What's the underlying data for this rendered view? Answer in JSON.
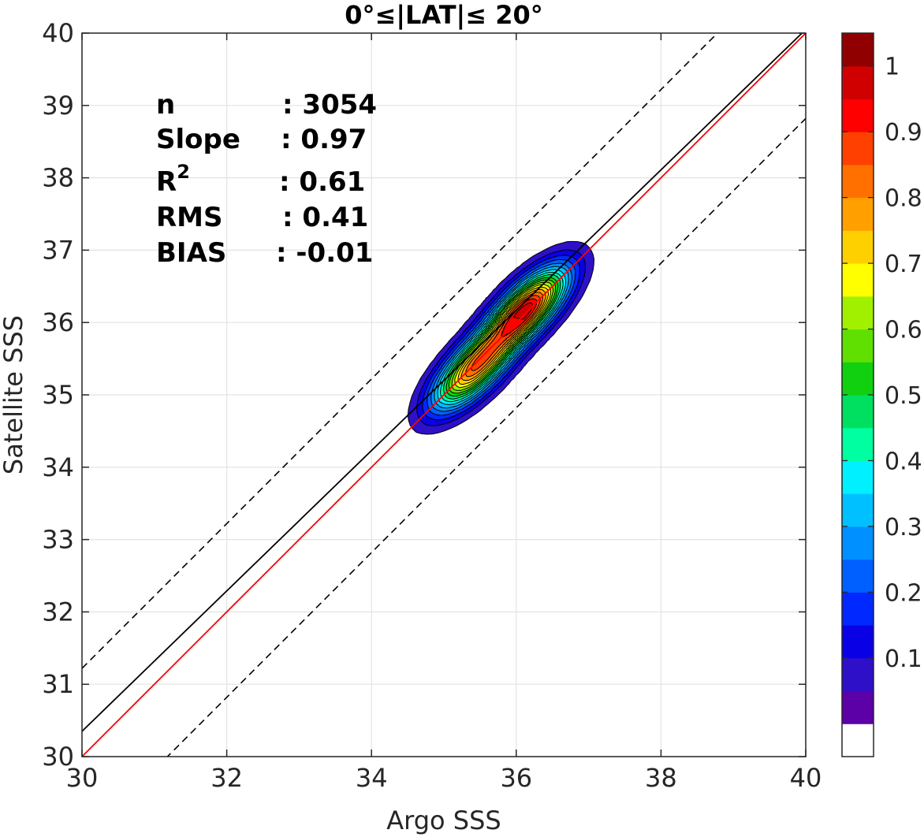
{
  "chart_data": {
    "type": "contour",
    "title": "0°≤|LAT|≤ 20°",
    "xlabel": "Argo SSS",
    "ylabel": "Satellite SSS",
    "xlim": [
      30,
      40
    ],
    "ylim": [
      30,
      40
    ],
    "xticks": [
      "30",
      "32",
      "34",
      "36",
      "38",
      "40"
    ],
    "yticks": [
      "30",
      "31",
      "32",
      "33",
      "34",
      "35",
      "36",
      "37",
      "38",
      "39",
      "40"
    ],
    "grid": true,
    "stats": [
      {
        "label": "n",
        "value": ": 3054"
      },
      {
        "label": "Slope",
        "value": ": 0.97"
      },
      {
        "label": "R",
        "sup": "2",
        "value": ": 0.61"
      },
      {
        "label": "RMS",
        "value": ": 0.41"
      },
      {
        "label": "BIAS",
        "value": ": -0.01"
      }
    ],
    "lines": {
      "one_to_one": {
        "slope": 1.0,
        "intercept": 0.0,
        "color": "#ff0000"
      },
      "fit": {
        "slope": 0.97,
        "intercept": 1.25,
        "color": "#000000"
      },
      "bounds": [
        {
          "slope": 1.0,
          "intercept": 1.22,
          "style": "dashed"
        },
        {
          "slope": 1.0,
          "intercept": -1.18,
          "style": "dashed"
        }
      ]
    },
    "density": {
      "peaks": [
        {
          "x": 36.15,
          "y": 36.2,
          "value": 1.0
        },
        {
          "x": 35.4,
          "y": 35.35,
          "value": 0.85
        }
      ]
    },
    "colorbar": {
      "levels": 20,
      "ticks": [
        "0.1",
        "0.2",
        "0.3",
        "0.4",
        "0.5",
        "0.6",
        "0.7",
        "0.8",
        "0.9",
        "1"
      ],
      "tick_values": [
        0.1,
        0.2,
        0.3,
        0.4,
        0.5,
        0.6,
        0.7,
        0.8,
        0.9,
        1.0
      ],
      "colors": [
        "#ffffff",
        "#5c00a8",
        "#2e10c8",
        "#0a00e6",
        "#0028ff",
        "#0060ff",
        "#0090ff",
        "#00c0ff",
        "#00f0ff",
        "#00ffa0",
        "#00e060",
        "#10d010",
        "#60e000",
        "#a0f000",
        "#ffff00",
        "#ffd000",
        "#ffa000",
        "#ff7000",
        "#ff4000",
        "#ff0000",
        "#d00000",
        "#900000"
      ]
    }
  }
}
